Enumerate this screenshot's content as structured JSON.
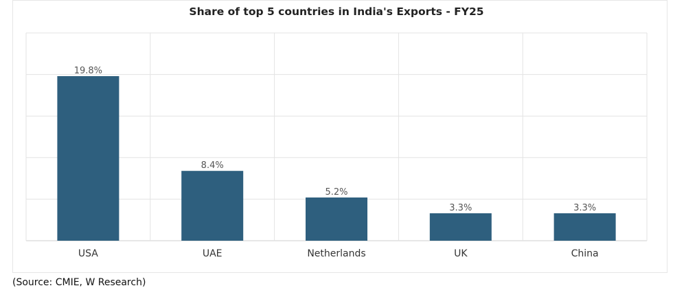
{
  "chart_data": {
    "type": "bar",
    "title": "Share of top 5 countries in India's Exports - FY25",
    "categories": [
      "USA",
      "UAE",
      "Netherlands",
      "UK",
      "China"
    ],
    "values": [
      19.8,
      8.4,
      5.2,
      3.3,
      3.3
    ],
    "data_labels": [
      "19.8%",
      "8.4%",
      "5.2%",
      "3.3%",
      "3.3%"
    ],
    "xlabel": "",
    "ylabel": "",
    "ylim": [
      0,
      25
    ],
    "y_gridlines": [
      0,
      5,
      10,
      15,
      20,
      25
    ],
    "grid": true,
    "bar_color": "#2e5f7e"
  },
  "source": "(Source: CMIE, W Research)"
}
